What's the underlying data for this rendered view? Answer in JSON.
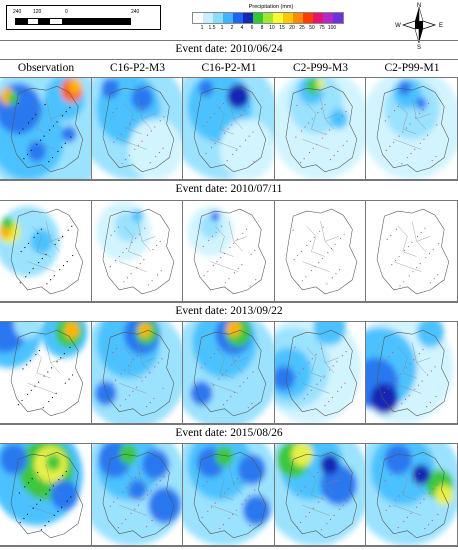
{
  "scalebar": {
    "ticks": [
      "240",
      "120",
      "0",
      "240"
    ]
  },
  "legend": {
    "title": "Precipitation (mm)",
    "labels": [
      "1",
      "1.5",
      "1",
      "2",
      "4",
      "6",
      "8",
      "10",
      "15",
      "20",
      "25",
      "50",
      "75",
      "100"
    ],
    "colors": [
      "#ffffff",
      "#c8f0ff",
      "#8cdcff",
      "#41b4ff",
      "#1e64f0",
      "#1428b4",
      "#32c832",
      "#a0e632",
      "#fafa32",
      "#ffc800",
      "#ff8c00",
      "#ff3c00",
      "#e6146e",
      "#b428c8",
      "#6e32dc"
    ]
  },
  "compass": {
    "n": "N",
    "s": "S",
    "e": "E",
    "w": "W"
  },
  "columns": [
    "Observation",
    "C16-P2-M3",
    "C16-P2-M1",
    "C2-P99-M3",
    "C2-P99-M1"
  ],
  "events": [
    {
      "title": "Event date: 2010/06/24"
    },
    {
      "title": "Event date: 2010/07/11"
    },
    {
      "title": "Event date: 2013/09/22"
    },
    {
      "title": "Event date: 2015/08/26"
    }
  ]
}
